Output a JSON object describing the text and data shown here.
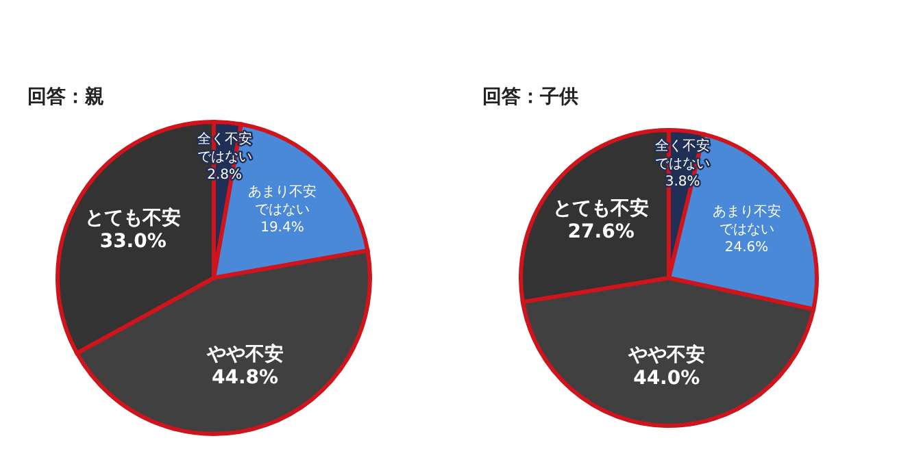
{
  "chart_data": [
    {
      "type": "pie",
      "title": "回答：親",
      "categories": [
        "全く不安ではない",
        "あまり不安ではない",
        "やや不安",
        "とても不安"
      ],
      "values": [
        2.8,
        19.4,
        44.8,
        33.0
      ],
      "value_labels": [
        "2.8%",
        "19.4%",
        "44.8%",
        "33.0%"
      ],
      "colors": [
        "#1f2f55",
        "#4a88d8",
        "#404040",
        "#333333"
      ],
      "legend": false
    },
    {
      "type": "pie",
      "title": "回答：子供",
      "categories": [
        "全く不安ではない",
        "あまり不安ではない",
        "やや不安",
        "とても不安"
      ],
      "values": [
        3.8,
        24.6,
        44.0,
        27.6
      ],
      "value_labels": [
        "3.8%",
        "24.6%",
        "44.0%",
        "27.6%"
      ],
      "colors": [
        "#1f2f55",
        "#4a88d8",
        "#404040",
        "#333333"
      ],
      "legend": false
    }
  ]
}
